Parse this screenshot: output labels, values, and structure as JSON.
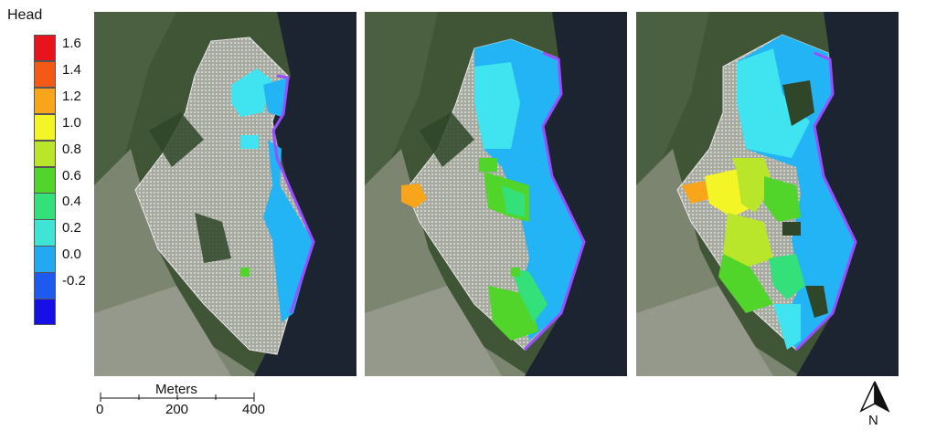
{
  "legend": {
    "title": "Head",
    "entries": [
      {
        "label": "1.6",
        "color": "#e8141c"
      },
      {
        "label": "1.4",
        "color": "#f25a16"
      },
      {
        "label": "1.2",
        "color": "#f9a51c"
      },
      {
        "label": "1.0",
        "color": "#f3f526"
      },
      {
        "label": "0.8",
        "color": "#b9e52a"
      },
      {
        "label": "0.6",
        "color": "#52d52a"
      },
      {
        "label": "0.4",
        "color": "#33e079"
      },
      {
        "label": "0.2",
        "color": "#3fe4d4"
      },
      {
        "label": "0.0",
        "color": "#22a9f2"
      },
      {
        "label": "-0.2",
        "color": "#1e5af0"
      },
      {
        "label": "",
        "color": "#1410e6"
      }
    ]
  },
  "scale": {
    "title": "Meters",
    "ticks": [
      "0",
      "200",
      "400"
    ]
  },
  "north": {
    "label": "N"
  },
  "colors": {
    "water": "#1a2230",
    "land": "#3d5232",
    "meadow": "#7d8a6e",
    "mesh": "#c9cbc3",
    "boundary": "#9b4dff"
  },
  "panels": [
    "panel-1",
    "panel-2",
    "panel-3"
  ]
}
